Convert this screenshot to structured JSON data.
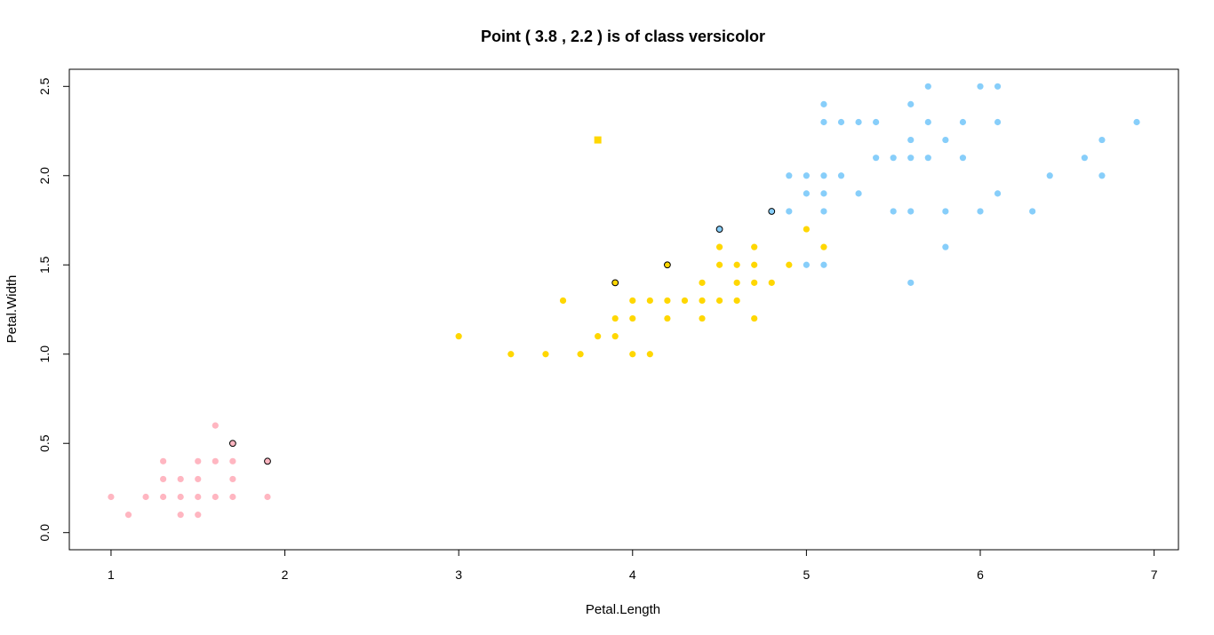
{
  "chart_data": {
    "type": "scatter",
    "title": "Point ( 3.8 , 2.2 ) is of class versicolor",
    "xlabel": "Petal.Length",
    "ylabel": "Petal.Width",
    "xlim": [
      0.76,
      7.14
    ],
    "ylim": [
      -0.096,
      2.596
    ],
    "xticks": [
      1,
      2,
      3,
      4,
      5,
      6,
      7
    ],
    "yticks": [
      0.0,
      0.5,
      1.0,
      1.5,
      2.0,
      2.5
    ],
    "xtick_labels": [
      "1",
      "2",
      "3",
      "4",
      "5",
      "6",
      "7"
    ],
    "ytick_labels": [
      "0.0",
      "0.5",
      "1.0",
      "1.5",
      "2.0",
      "2.5"
    ],
    "grid": false,
    "series": [
      {
        "color": "#FFB6C1",
        "points": [
          [
            1.0,
            0.2
          ],
          [
            1.1,
            0.1
          ],
          [
            1.2,
            0.2
          ],
          [
            1.3,
            0.2
          ],
          [
            1.3,
            0.3
          ],
          [
            1.3,
            0.4
          ],
          [
            1.4,
            0.1
          ],
          [
            1.4,
            0.2
          ],
          [
            1.4,
            0.3
          ],
          [
            1.5,
            0.1
          ],
          [
            1.5,
            0.2
          ],
          [
            1.5,
            0.3
          ],
          [
            1.5,
            0.4
          ],
          [
            1.6,
            0.2
          ],
          [
            1.6,
            0.4
          ],
          [
            1.6,
            0.6
          ],
          [
            1.7,
            0.2
          ],
          [
            1.7,
            0.3
          ],
          [
            1.7,
            0.4
          ],
          [
            1.9,
            0.2
          ]
        ]
      },
      {
        "color": "#FFD700",
        "points": [
          [
            3.0,
            1.1
          ],
          [
            3.3,
            1.0
          ],
          [
            3.5,
            1.0
          ],
          [
            3.6,
            1.3
          ],
          [
            3.7,
            1.0
          ],
          [
            3.8,
            1.1
          ],
          [
            3.9,
            1.1
          ],
          [
            3.9,
            1.2
          ],
          [
            4.0,
            1.0
          ],
          [
            4.0,
            1.2
          ],
          [
            4.0,
            1.3
          ],
          [
            4.1,
            1.0
          ],
          [
            4.1,
            1.3
          ],
          [
            4.2,
            1.2
          ],
          [
            4.2,
            1.3
          ],
          [
            4.3,
            1.3
          ],
          [
            4.4,
            1.2
          ],
          [
            4.4,
            1.3
          ],
          [
            4.4,
            1.4
          ],
          [
            4.5,
            1.3
          ],
          [
            4.5,
            1.5
          ],
          [
            4.5,
            1.6
          ],
          [
            4.6,
            1.3
          ],
          [
            4.6,
            1.4
          ],
          [
            4.6,
            1.5
          ],
          [
            4.7,
            1.2
          ],
          [
            4.7,
            1.4
          ],
          [
            4.7,
            1.5
          ],
          [
            4.7,
            1.6
          ],
          [
            4.8,
            1.4
          ],
          [
            4.9,
            1.5
          ],
          [
            5.0,
            1.7
          ],
          [
            5.1,
            1.6
          ]
        ]
      },
      {
        "color": "#87CEFA",
        "points": [
          [
            4.9,
            1.8
          ],
          [
            4.9,
            2.0
          ],
          [
            5.0,
            1.5
          ],
          [
            5.0,
            1.9
          ],
          [
            5.0,
            2.0
          ],
          [
            5.1,
            1.5
          ],
          [
            5.1,
            1.8
          ],
          [
            5.1,
            1.9
          ],
          [
            5.1,
            2.0
          ],
          [
            5.1,
            2.3
          ],
          [
            5.1,
            2.4
          ],
          [
            5.2,
            2.0
          ],
          [
            5.2,
            2.3
          ],
          [
            5.3,
            1.9
          ],
          [
            5.3,
            2.3
          ],
          [
            5.4,
            2.1
          ],
          [
            5.4,
            2.3
          ],
          [
            5.5,
            1.8
          ],
          [
            5.5,
            2.1
          ],
          [
            5.6,
            1.4
          ],
          [
            5.6,
            1.8
          ],
          [
            5.6,
            2.1
          ],
          [
            5.6,
            2.2
          ],
          [
            5.6,
            2.4
          ],
          [
            5.7,
            2.1
          ],
          [
            5.7,
            2.3
          ],
          [
            5.7,
            2.5
          ],
          [
            5.8,
            1.6
          ],
          [
            5.8,
            1.8
          ],
          [
            5.8,
            2.2
          ],
          [
            5.9,
            2.1
          ],
          [
            5.9,
            2.3
          ],
          [
            6.0,
            1.8
          ],
          [
            6.0,
            2.5
          ],
          [
            6.1,
            1.9
          ],
          [
            6.1,
            2.3
          ],
          [
            6.1,
            2.5
          ],
          [
            6.3,
            1.8
          ],
          [
            6.4,
            2.0
          ],
          [
            6.6,
            2.1
          ],
          [
            6.7,
            2.0
          ],
          [
            6.7,
            2.2
          ],
          [
            6.9,
            2.3
          ]
        ]
      }
    ],
    "outlined_points": [
      {
        "x": 1.7,
        "y": 0.5,
        "color": "#FFB6C1"
      },
      {
        "x": 1.9,
        "y": 0.4,
        "color": "#FFB6C1"
      },
      {
        "x": 3.9,
        "y": 1.4,
        "color": "#FFD700"
      },
      {
        "x": 4.2,
        "y": 1.5,
        "color": "#FFD700"
      },
      {
        "x": 4.5,
        "y": 1.7,
        "color": "#87CEFA"
      },
      {
        "x": 4.8,
        "y": 1.8,
        "color": "#87CEFA"
      }
    ],
    "query_point": {
      "x": 3.8,
      "y": 2.2,
      "color": "#FFD700",
      "shape": "square"
    }
  }
}
